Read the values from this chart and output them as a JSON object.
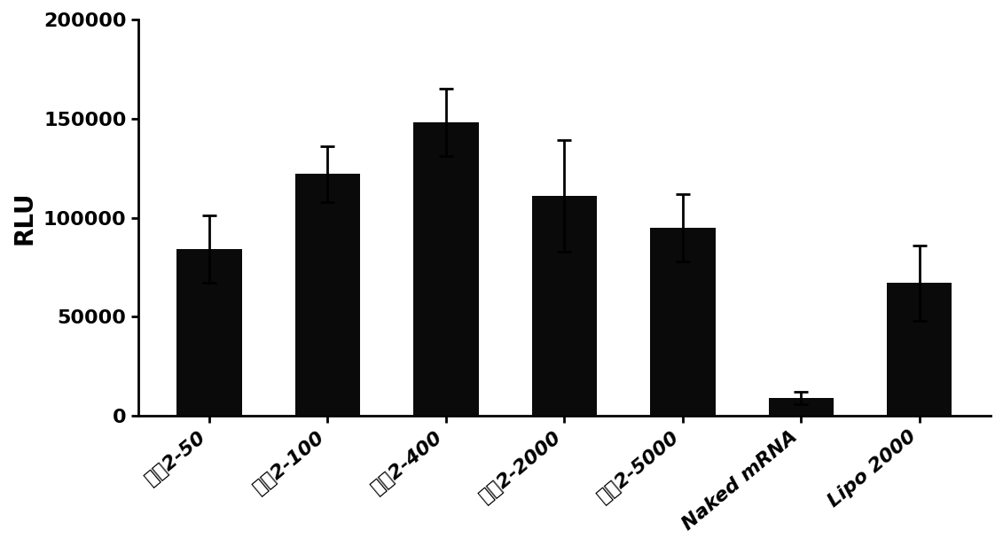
{
  "categories": [
    "处方2-50",
    "处方2-100",
    "处方2-400",
    "处方2-2000",
    "处方2-5000",
    "Naked mRNA",
    "Lipo 2000"
  ],
  "values": [
    84000,
    122000,
    148000,
    111000,
    95000,
    9000,
    67000
  ],
  "errors": [
    17000,
    14000,
    17000,
    28000,
    17000,
    3000,
    19000
  ],
  "bar_color": "#0a0a0a",
  "ylabel": "RLU",
  "ylim": [
    0,
    200000
  ],
  "yticks": [
    0,
    50000,
    100000,
    150000,
    200000
  ],
  "background_color": "#ffffff",
  "bar_width": 0.55,
  "ylabel_fontsize": 20,
  "tick_fontsize": 16,
  "xlabel_rotation": 40
}
